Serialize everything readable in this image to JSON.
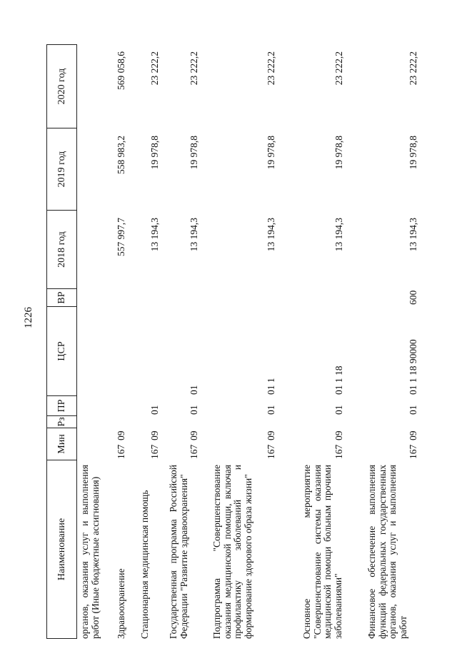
{
  "page_number": "1226",
  "columns": [
    "Наименование",
    "Мин",
    "Рз",
    "ПР",
    "ЦСР",
    "ВР",
    "2018 год",
    "2019 год",
    "2020 год"
  ],
  "rows": [
    {
      "name": "органов, оказания услуг и выполнения работ (Иные бюджетные ассигнования)",
      "min": "",
      "rz": "",
      "pr": "",
      "csr": "",
      "vr": "",
      "y2018": "",
      "y2019": "",
      "y2020": ""
    },
    {
      "name": "Здравоохранение",
      "min": "167",
      "rz": "09",
      "pr": "",
      "csr": "",
      "vr": "",
      "y2018": "557 997,7",
      "y2019": "558 983,2",
      "y2020": "569 058,6"
    },
    {
      "name": "Стационарная медицинская помощь",
      "min": "167",
      "rz": "09",
      "pr": "01",
      "csr": "",
      "vr": "",
      "y2018": "13 194,3",
      "y2019": "19 978,8",
      "y2020": "23 222,2"
    },
    {
      "name": "Государственная программа Российской Федерации \"Развитие здравоохранения\"",
      "min": "167",
      "rz": "09",
      "pr": "01",
      "csr": "01",
      "vr": "",
      "y2018": "13 194,3",
      "y2019": "19 978,8",
      "y2020": "23 222,2"
    },
    {
      "name": "Подпрограмма \"Совершенствование оказания медицинской помощи, включая профилактику заболеваний и формирование здорового образа жизни\"",
      "min": "167",
      "rz": "09",
      "pr": "01",
      "csr": "01 1",
      "vr": "",
      "y2018": "13 194,3",
      "y2019": "19 978,8",
      "y2020": "23 222,2"
    },
    {
      "name": "Основное мероприятие \"Совершенствование системы оказания медицинской помощи больным прочими заболеваниями\"",
      "min": "167",
      "rz": "09",
      "pr": "01",
      "csr": "01 1 18",
      "vr": "",
      "y2018": "13 194,3",
      "y2019": "19 978,8",
      "y2020": "23 222,2"
    },
    {
      "name": "Финансовое обеспечение выполнения функций федеральных государственных органов, оказания услуг и выполнения работ",
      "min": "167",
      "rz": "09",
      "pr": "01",
      "csr": "01 1 18 90000",
      "vr": "600",
      "y2018": "13 194,3",
      "y2019": "19 978,8",
      "y2020": "23 222,2"
    }
  ]
}
